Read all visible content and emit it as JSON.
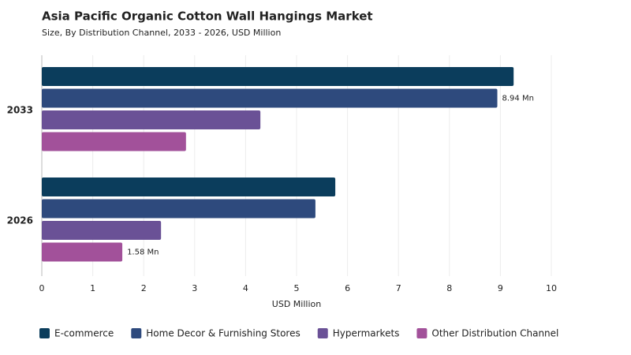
{
  "chart_data": {
    "type": "hbar",
    "title": "Asia Pacific Organic Cotton Wall Hangings Market",
    "subtitle": "Size, By Distribution Channel, 2033 - 2026, USD Million",
    "xlabel": "USD Million",
    "categories": [
      "2033",
      "2026"
    ],
    "series": [
      {
        "name": "E-commerce",
        "color": "#0b3d5c",
        "values": [
          9.26,
          5.76
        ]
      },
      {
        "name": "Home Decor & Furnishing Stores",
        "color": "#2e4a7d",
        "values": [
          8.94,
          5.37
        ],
        "value_labels": [
          "8.94 Mn",
          null
        ]
      },
      {
        "name": "Hypermarkets",
        "color": "#6a5196",
        "values": [
          4.29,
          2.34
        ]
      },
      {
        "name": "Other Distribution Channel",
        "color": "#a2519a",
        "values": [
          2.83,
          1.58
        ],
        "value_labels": [
          null,
          "1.58 Mn"
        ]
      }
    ],
    "xlim": [
      0,
      10
    ],
    "xticks": [
      0,
      1,
      2,
      3,
      4,
      5,
      6,
      7,
      8,
      9,
      10
    ],
    "grid": true,
    "legend": "bottom"
  }
}
